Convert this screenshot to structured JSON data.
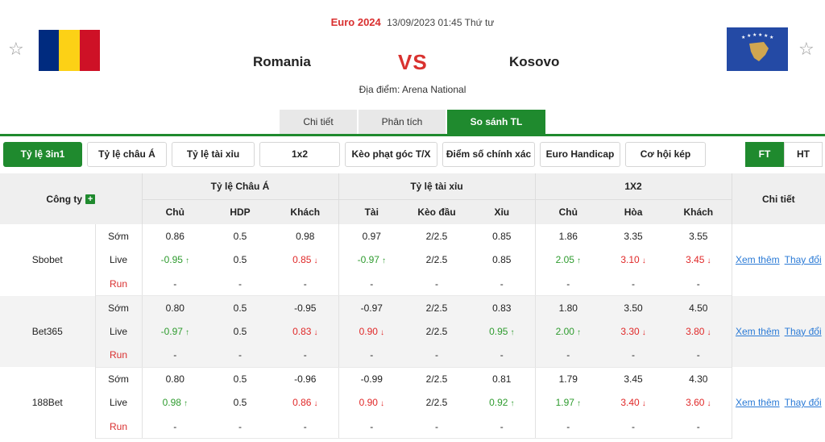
{
  "match": {
    "league": "Euro 2024",
    "datetime": "13/09/2023 01:45 Thứ tư",
    "home": "Romania",
    "away": "Kosovo",
    "vs": "VS",
    "venue": "Địa điểm: Arena National"
  },
  "colors": {
    "brand_green": "#1f8a2e",
    "vs_red": "#d9322f",
    "up_green": "#2e9b2e",
    "down_red": "#e02828",
    "link_blue": "#2a7ad6"
  },
  "icons": {
    "favorite": "star-outline-icon",
    "add": "plus-icon",
    "up": "arrow-up-icon",
    "down": "arrow-down-icon"
  },
  "tabs": [
    "Chi tiết",
    "Phân tích",
    "So sánh TL"
  ],
  "active_tab": "So sánh TL",
  "odds_buttons": [
    "Tỷ lệ 3in1",
    "Tỷ lệ châu Á",
    "Tỷ lệ tài xỉu",
    "1x2",
    "Kèo phạt góc T/X",
    "Điểm số chính xác",
    "Euro Handicap",
    "Cơ hội kép"
  ],
  "toggle": [
    "FT",
    "HT"
  ],
  "table": {
    "company_header": "Công ty",
    "groups": [
      "Tỷ lệ Châu Á",
      "Tỷ lệ tài xỉu",
      "1X2"
    ],
    "detail_header": "Chi tiết",
    "sub_headers": [
      "Chủ",
      "HDP",
      "Khách",
      "Tài",
      "Kèo đầu",
      "Xỉu",
      "Chủ",
      "Hòa",
      "Khách"
    ],
    "more_link": "Xem thêm",
    "change_link": "Thay đổi",
    "bookmakers": [
      {
        "name": "Sbobet",
        "rows": [
          {
            "type": "Sớm",
            "cells": [
              [
                "0.86",
                ""
              ],
              [
                "0.5",
                ""
              ],
              [
                "0.98",
                ""
              ],
              [
                "0.97",
                ""
              ],
              [
                "2/2.5",
                ""
              ],
              [
                "0.85",
                ""
              ],
              [
                "1.86",
                ""
              ],
              [
                "3.35",
                ""
              ],
              [
                "3.55",
                ""
              ]
            ]
          },
          {
            "type": "Live",
            "cells": [
              [
                "-0.95",
                "up"
              ],
              [
                "0.5",
                ""
              ],
              [
                "0.85",
                "down"
              ],
              [
                "-0.97",
                "up"
              ],
              [
                "2/2.5",
                ""
              ],
              [
                "0.85",
                ""
              ],
              [
                "2.05",
                "up"
              ],
              [
                "3.10",
                "down"
              ],
              [
                "3.45",
                "down"
              ]
            ]
          },
          {
            "type": "Run",
            "cells": [
              [
                "-",
                ""
              ],
              [
                "-",
                ""
              ],
              [
                "-",
                ""
              ],
              [
                "-",
                ""
              ],
              [
                "-",
                ""
              ],
              [
                "-",
                ""
              ],
              [
                "-",
                ""
              ],
              [
                "-",
                ""
              ],
              [
                "-",
                ""
              ]
            ]
          }
        ]
      },
      {
        "name": "Bet365",
        "rows": [
          {
            "type": "Sớm",
            "cells": [
              [
                "0.80",
                ""
              ],
              [
                "0.5",
                ""
              ],
              [
                "-0.95",
                ""
              ],
              [
                "-0.97",
                ""
              ],
              [
                "2/2.5",
                ""
              ],
              [
                "0.83",
                ""
              ],
              [
                "1.80",
                ""
              ],
              [
                "3.50",
                ""
              ],
              [
                "4.50",
                ""
              ]
            ]
          },
          {
            "type": "Live",
            "cells": [
              [
                "-0.97",
                "up"
              ],
              [
                "0.5",
                ""
              ],
              [
                "0.83",
                "down"
              ],
              [
                "0.90",
                "down"
              ],
              [
                "2/2.5",
                ""
              ],
              [
                "0.95",
                "up"
              ],
              [
                "2.00",
                "up"
              ],
              [
                "3.30",
                "down"
              ],
              [
                "3.80",
                "down"
              ]
            ]
          },
          {
            "type": "Run",
            "cells": [
              [
                "-",
                ""
              ],
              [
                "-",
                ""
              ],
              [
                "-",
                ""
              ],
              [
                "-",
                ""
              ],
              [
                "-",
                ""
              ],
              [
                "-",
                ""
              ],
              [
                "-",
                ""
              ],
              [
                "-",
                ""
              ],
              [
                "-",
                ""
              ]
            ]
          }
        ]
      },
      {
        "name": "188Bet",
        "rows": [
          {
            "type": "Sớm",
            "cells": [
              [
                "0.80",
                ""
              ],
              [
                "0.5",
                ""
              ],
              [
                "-0.96",
                ""
              ],
              [
                "-0.99",
                ""
              ],
              [
                "2/2.5",
                ""
              ],
              [
                "0.81",
                ""
              ],
              [
                "1.79",
                ""
              ],
              [
                "3.45",
                ""
              ],
              [
                "4.30",
                ""
              ]
            ]
          },
          {
            "type": "Live",
            "cells": [
              [
                "0.98",
                "up"
              ],
              [
                "0.5",
                ""
              ],
              [
                "0.86",
                "down"
              ],
              [
                "0.90",
                "down"
              ],
              [
                "2/2.5",
                ""
              ],
              [
                "0.92",
                "up"
              ],
              [
                "1.97",
                "up"
              ],
              [
                "3.40",
                "down"
              ],
              [
                "3.60",
                "down"
              ]
            ]
          },
          {
            "type": "Run",
            "cells": [
              [
                "-",
                ""
              ],
              [
                "-",
                ""
              ],
              [
                "-",
                ""
              ],
              [
                "-",
                ""
              ],
              [
                "-",
                ""
              ],
              [
                "-",
                ""
              ],
              [
                "-",
                ""
              ],
              [
                "-",
                ""
              ],
              [
                "-",
                ""
              ]
            ]
          }
        ]
      }
    ]
  }
}
